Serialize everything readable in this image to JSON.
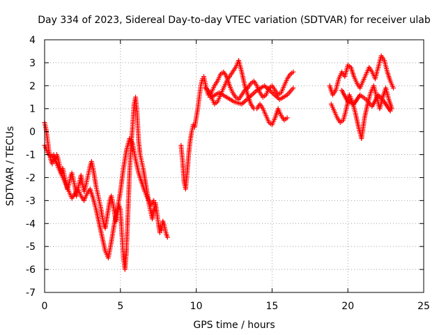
{
  "chart_data": {
    "type": "scatter",
    "title": "Day 334 of 2023, Sidereal Day-to-day VTEC variation (SDTVAR) for receiver ulab",
    "xlabel": "GPS time / hours",
    "ylabel": "SDTVAR / TECUs",
    "xlim": [
      0,
      25
    ],
    "ylim": [
      -7,
      4
    ],
    "xticks": [
      0,
      5,
      10,
      15,
      20,
      25
    ],
    "yticks": [
      -7,
      -6,
      -5,
      -4,
      -3,
      -2,
      -1,
      0,
      1,
      2,
      3,
      4
    ],
    "grid": true,
    "marker": "plus",
    "color": "#ff0000",
    "series": [
      {
        "x": [
          0.0,
          0.1,
          0.2,
          0.3,
          0.4,
          0.5,
          0.6,
          0.7,
          0.8,
          0.9,
          1.0,
          1.1,
          1.2,
          1.3,
          1.4,
          1.5,
          1.6,
          1.7,
          1.8,
          1.9,
          2.0,
          2.1,
          2.2,
          2.3,
          2.4,
          2.5,
          2.6,
          2.7,
          2.8,
          2.9,
          3.0,
          3.1,
          3.2,
          3.3,
          3.4,
          3.5,
          3.6,
          3.7,
          3.8,
          3.9,
          4.0,
          4.1,
          4.2,
          4.3,
          4.4,
          4.5,
          4.6,
          4.7,
          4.8,
          4.9,
          5.0,
          5.1,
          5.2,
          5.3,
          5.4,
          5.5,
          5.6,
          5.7,
          5.8,
          5.9,
          6.0,
          6.1,
          6.2,
          6.3,
          6.4,
          6.5,
          6.6,
          6.7,
          6.8,
          6.9,
          7.0,
          7.1,
          7.2,
          7.3,
          7.4,
          7.5,
          7.6,
          7.7,
          7.8,
          7.9,
          8.0,
          8.1
        ],
        "y": [
          0.4,
          0.1,
          -0.4,
          -0.9,
          -1.2,
          -1.4,
          -1.3,
          -1.1,
          -1.0,
          -1.2,
          -1.5,
          -1.8,
          -1.6,
          -1.9,
          -2.2,
          -2.5,
          -2.3,
          -2.0,
          -1.8,
          -2.1,
          -2.4,
          -2.8,
          -2.5,
          -2.2,
          -1.9,
          -2.3,
          -2.6,
          -2.4,
          -2.1,
          -1.8,
          -1.5,
          -1.3,
          -1.6,
          -2.0,
          -2.4,
          -2.7,
          -3.0,
          -3.3,
          -3.7,
          -4.0,
          -4.2,
          -3.8,
          -3.4,
          -3.0,
          -2.8,
          -3.1,
          -3.5,
          -3.9,
          -3.6,
          -3.2,
          -3.4,
          -4.5,
          -5.5,
          -6.0,
          -5.2,
          -3.5,
          -1.8,
          -0.6,
          0.2,
          1.2,
          1.5,
          0.8,
          -0.4,
          -1.0,
          -1.3,
          -1.6,
          -2.0,
          -2.4,
          -2.8,
          -3.2,
          -3.5,
          -3.8,
          -3.4,
          -3.1,
          -3.5,
          -4.0,
          -4.4,
          -4.3,
          -3.9,
          -4.1,
          -4.4,
          -4.6
        ]
      },
      {
        "x": [
          0.0,
          0.2,
          0.4,
          0.6,
          0.8,
          1.0,
          1.2,
          1.4,
          1.6,
          1.8,
          2.0,
          2.2,
          2.4,
          2.6,
          2.8,
          3.0,
          3.2,
          3.4,
          3.6,
          3.8,
          4.0,
          4.2,
          4.4,
          4.6,
          4.8,
          5.0,
          5.2,
          5.4,
          5.6,
          5.8,
          6.0,
          6.2,
          6.4,
          6.6,
          6.8,
          7.0,
          7.2
        ],
        "y": [
          -0.6,
          -0.9,
          -1.1,
          -1.0,
          -1.4,
          -1.7,
          -2.0,
          -2.3,
          -2.6,
          -2.9,
          -2.7,
          -2.5,
          -2.8,
          -3.0,
          -2.7,
          -2.5,
          -2.9,
          -3.4,
          -4.0,
          -4.6,
          -5.2,
          -5.5,
          -4.8,
          -4.0,
          -3.4,
          -2.6,
          -1.6,
          -0.8,
          -0.3,
          -0.5,
          -1.2,
          -1.8,
          -2.2,
          -2.6,
          -2.9,
          -3.2,
          -3.0
        ]
      },
      {
        "x": [
          9.0,
          9.1,
          9.2,
          9.3,
          9.4,
          9.5,
          9.6,
          9.7,
          9.8,
          9.9,
          10.0,
          10.1,
          10.2,
          10.3,
          10.4,
          10.5,
          10.6,
          10.7,
          10.8,
          10.9,
          11.0,
          11.2,
          11.4,
          11.6,
          11.8,
          12.0,
          12.2,
          12.4,
          12.6,
          12.8,
          13.0,
          13.2,
          13.4,
          13.6,
          13.8,
          14.0,
          14.2,
          14.4,
          14.6,
          14.8,
          15.0,
          15.2,
          15.4,
          15.6,
          15.8,
          16.0,
          16.2,
          16.4
        ],
        "y": [
          -0.6,
          -1.3,
          -2.2,
          -2.5,
          -1.8,
          -1.0,
          -0.4,
          0.0,
          0.3,
          0.2,
          0.6,
          1.0,
          1.5,
          2.0,
          2.3,
          2.4,
          2.1,
          1.8,
          1.6,
          1.5,
          1.7,
          2.0,
          2.2,
          2.5,
          2.6,
          2.4,
          2.0,
          1.7,
          1.5,
          1.4,
          1.6,
          1.8,
          1.9,
          2.1,
          2.2,
          2.0,
          1.7,
          1.5,
          1.6,
          1.9,
          2.0,
          1.8,
          1.6,
          1.7,
          2.0,
          2.3,
          2.5,
          2.6
        ]
      },
      {
        "x": [
          10.6,
          10.8,
          11.0,
          11.2,
          11.4,
          11.6,
          11.8,
          12.0,
          12.2,
          12.4,
          12.6,
          12.8,
          13.0,
          13.2,
          13.4,
          13.6,
          13.8,
          14.0,
          14.2,
          14.4,
          14.6,
          14.8,
          15.0,
          15.2,
          15.4,
          15.6,
          15.8,
          16.0
        ],
        "y": [
          1.9,
          1.8,
          1.5,
          1.2,
          1.3,
          1.6,
          1.9,
          2.2,
          2.4,
          2.6,
          2.8,
          3.1,
          2.6,
          2.0,
          1.6,
          1.2,
          1.0,
          1.0,
          1.2,
          1.0,
          0.7,
          0.4,
          0.3,
          0.6,
          1.0,
          0.7,
          0.5,
          0.6
        ]
      },
      {
        "x": [
          11.0,
          11.5,
          12.0,
          12.5,
          13.0,
          13.5,
          14.0,
          14.5,
          15.0,
          15.5,
          16.0,
          16.4
        ],
        "y": [
          1.5,
          1.7,
          1.5,
          1.3,
          1.2,
          1.5,
          1.8,
          2.0,
          1.7,
          1.4,
          1.6,
          1.9
        ]
      },
      {
        "x": [
          18.8,
          19.0,
          19.2,
          19.4,
          19.6,
          19.8,
          20.0,
          20.2,
          20.4,
          20.6,
          20.8,
          21.0,
          21.2,
          21.4,
          21.6,
          21.8,
          22.0,
          22.2,
          22.4,
          22.6,
          22.8,
          23.0
        ],
        "y": [
          2.0,
          1.6,
          1.8,
          2.3,
          2.6,
          2.4,
          2.9,
          2.8,
          2.4,
          2.1,
          1.9,
          2.2,
          2.5,
          2.8,
          2.6,
          2.3,
          2.8,
          3.3,
          3.1,
          2.6,
          2.2,
          1.9
        ]
      },
      {
        "x": [
          18.9,
          19.1,
          19.3,
          19.5,
          19.7,
          19.9,
          20.1,
          20.3,
          20.5,
          20.7,
          20.9,
          21.1,
          21.3,
          21.5,
          21.7,
          21.9,
          22.1,
          22.3,
          22.5,
          22.7,
          22.9
        ],
        "y": [
          1.2,
          0.9,
          0.6,
          0.4,
          0.5,
          1.0,
          1.6,
          1.3,
          0.8,
          0.2,
          -0.3,
          0.6,
          1.2,
          1.7,
          2.0,
          1.5,
          1.0,
          1.5,
          1.9,
          1.4,
          1.0
        ]
      },
      {
        "x": [
          19.6,
          20.0,
          20.4,
          20.8,
          21.2,
          21.6,
          22.0,
          22.4,
          22.8
        ],
        "y": [
          1.8,
          1.3,
          1.2,
          1.6,
          1.4,
          1.1,
          1.6,
          1.3,
          0.9
        ]
      }
    ]
  }
}
